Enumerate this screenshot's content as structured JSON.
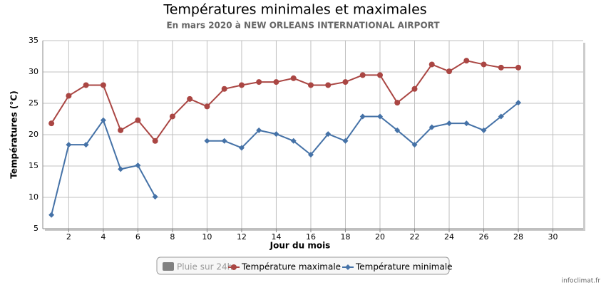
{
  "chart_data": {
    "type": "line",
    "title": "Températures minimales et maximales",
    "subtitle": "En mars 2020 à NEW ORLEANS INTERNATIONAL AIRPORT",
    "x_label": "Jour du mois",
    "y_label": "Températures (°C)",
    "x": [
      1,
      2,
      3,
      4,
      5,
      6,
      7,
      8,
      9,
      10,
      11,
      12,
      13,
      14,
      15,
      16,
      17,
      18,
      19,
      20,
      21,
      22,
      23,
      24,
      25,
      26,
      27,
      28
    ],
    "series": [
      {
        "name": "Température maximale",
        "color": "#aa4643",
        "values": [
          21.8,
          26.2,
          27.9,
          27.9,
          20.7,
          22.3,
          19.0,
          22.9,
          25.7,
          24.5,
          27.3,
          27.9,
          28.4,
          28.4,
          29.0,
          27.9,
          27.9,
          28.4,
          29.5,
          29.5,
          25.1,
          27.3,
          31.2,
          30.1,
          31.8,
          31.2,
          30.7,
          30.7
        ]
      },
      {
        "name": "Température minimale",
        "color": "#4572a7",
        "values": [
          7.2,
          18.4,
          18.4,
          22.3,
          14.5,
          15.1,
          10.1,
          null,
          null,
          19.0,
          19.0,
          17.9,
          20.7,
          20.1,
          19.0,
          16.8,
          20.1,
          19.0,
          22.9,
          22.9,
          20.7,
          18.4,
          21.2,
          21.8,
          21.8,
          20.7,
          22.9,
          25.1
        ]
      }
    ],
    "hidden_series": {
      "name": "Pluie sur 24h",
      "color": "#808080"
    },
    "xlim": [
      0.5,
      31.75
    ],
    "xticks": [
      2,
      4,
      6,
      8,
      10,
      12,
      14,
      16,
      18,
      20,
      22,
      24,
      26,
      28,
      30
    ],
    "ylim": [
      5,
      35
    ],
    "yticks": [
      5,
      10,
      15,
      20,
      25,
      30,
      35
    ],
    "grid": true,
    "credit": "infoclimat.fr"
  }
}
